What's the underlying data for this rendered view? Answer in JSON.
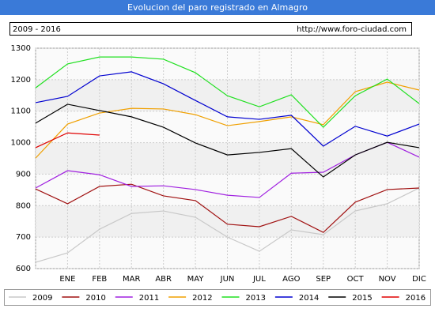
{
  "chart_data": {
    "type": "line",
    "title": "Evolucion del paro registrado en Almagro",
    "subtitle": "2009 - 2016",
    "source": "http://www.foro-ciudad.com",
    "categories": [
      null,
      "ENE",
      "FEB",
      "MAR",
      "ABR",
      "MAY",
      "JUN",
      "JUL",
      "AGO",
      "SEP",
      "OCT",
      "NOV",
      "DIC"
    ],
    "series": [
      {
        "name": "2009",
        "color": "#c8c8c8",
        "values": [
          620,
          650,
          725,
          775,
          783,
          763,
          700,
          655,
          723,
          708,
          783,
          806,
          856
        ]
      },
      {
        "name": "2010",
        "color": "#a01010",
        "values": [
          853,
          806,
          861,
          868,
          831,
          816,
          741,
          733,
          766,
          715,
          811,
          851,
          856
        ]
      },
      {
        "name": "2011",
        "color": "#a020e0",
        "values": [
          856,
          911,
          898,
          861,
          863,
          851,
          833,
          826,
          903,
          906,
          961,
          1001,
          954
        ]
      },
      {
        "name": "2012",
        "color": "#f0a000",
        "values": [
          951,
          1059,
          1094,
          1109,
          1107,
          1089,
          1054,
          1067,
          1082,
          1057,
          1162,
          1192,
          1167
        ]
      },
      {
        "name": "2013",
        "color": "#20e020",
        "values": [
          1174,
          1250,
          1272,
          1272,
          1265,
          1222,
          1149,
          1114,
          1152,
          1049,
          1149,
          1202,
          1124
        ]
      },
      {
        "name": "2014",
        "color": "#0000d0",
        "values": [
          1127,
          1147,
          1212,
          1225,
          1187,
          1134,
          1082,
          1074,
          1087,
          989,
          1052,
          1021,
          1059
        ]
      },
      {
        "name": "2015",
        "color": "#000000",
        "values": [
          1062,
          1122,
          1102,
          1082,
          1049,
          999,
          961,
          969,
          981,
          891,
          961,
          1001,
          984
        ]
      },
      {
        "name": "2016",
        "color": "#e00000",
        "values": [
          984,
          1031,
          1024,
          null,
          null,
          null,
          null,
          null,
          null,
          null,
          null,
          null,
          null
        ]
      }
    ],
    "ylim": [
      600,
      1300
    ],
    "yticks": [
      600,
      700,
      800,
      900,
      1000,
      1100,
      1200,
      1300
    ],
    "grid": true
  }
}
